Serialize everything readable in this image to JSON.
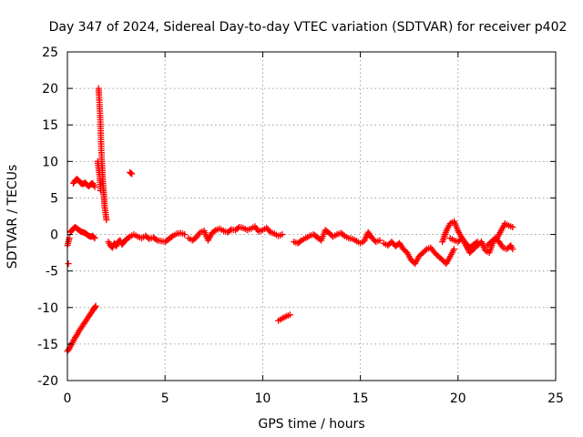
{
  "chart_data": {
    "type": "scatter",
    "title": "Day 347 of 2024, Sidereal Day-to-day VTEC variation (SDTVAR) for receiver p402",
    "xlabel": "GPS time / hours",
    "ylabel": "SDTVAR / TECUs",
    "xlim": [
      0,
      25
    ],
    "ylim": [
      -20,
      25
    ],
    "xticks": [
      0,
      5,
      10,
      15,
      20,
      25
    ],
    "yticks": [
      -20,
      -15,
      -10,
      -5,
      0,
      5,
      10,
      15,
      20,
      25
    ],
    "grid": true,
    "marker": "+",
    "color": "#ff0000",
    "series": [
      {
        "name": "SDTVAR",
        "segments": [
          {
            "x": [
              0.0,
              0.1,
              0.2,
              0.3,
              0.4,
              0.5,
              0.6,
              0.7,
              0.8,
              0.9,
              1.0,
              1.1,
              1.2,
              1.3,
              1.35,
              1.4,
              1.45
            ],
            "y": [
              -16.0,
              -15.6,
              -15.1,
              -14.6,
              -14.1,
              -13.7,
              -13.2,
              -12.8,
              -12.4,
              -12.0,
              -11.6,
              -11.2,
              -10.8,
              -10.4,
              -10.2,
              -10.0,
              -9.8
            ]
          },
          {
            "x": [
              0.0,
              0.05,
              0.1
            ],
            "y": [
              -1.5,
              -1.0,
              -0.5
            ]
          },
          {
            "x": [
              0.05
            ],
            "y": [
              -4.0
            ]
          },
          {
            "x": [
              0.15,
              0.2,
              0.3,
              0.4,
              0.5,
              0.6,
              0.7,
              0.8,
              0.9,
              1.0,
              1.1,
              1.2,
              1.3,
              1.4
            ],
            "y": [
              0.3,
              0.5,
              0.8,
              1.0,
              0.8,
              0.6,
              0.4,
              0.3,
              0.2,
              0.0,
              -0.2,
              -0.3,
              -0.2,
              -0.5
            ]
          },
          {
            "x": [
              0.3,
              0.4,
              0.5,
              0.6,
              0.7,
              0.8,
              0.9,
              1.0,
              1.1,
              1.2,
              1.3,
              1.4
            ],
            "y": [
              7.0,
              7.4,
              7.6,
              7.3,
              7.0,
              6.9,
              7.1,
              6.8,
              6.6,
              6.9,
              7.0,
              6.5
            ]
          },
          {
            "x": [
              1.6,
              1.62,
              1.65,
              1.68,
              1.7,
              1.72,
              1.74,
              1.76,
              1.78,
              1.8,
              1.82,
              1.85,
              1.88,
              1.9,
              1.95,
              2.0
            ],
            "y": [
              20.0,
              19.0,
              17.5,
              16.0,
              14.5,
              13.0,
              11.5,
              10.0,
              9.0,
              8.0,
              7.0,
              6.0,
              5.0,
              4.0,
              3.0,
              2.0
            ]
          },
          {
            "x": [
              1.55,
              1.6,
              1.65,
              1.7
            ],
            "y": [
              10.0,
              9.0,
              8.0,
              6.0
            ]
          },
          {
            "x": [
              3.2,
              3.3
            ],
            "y": [
              8.5,
              8.3
            ]
          },
          {
            "x": [
              2.1,
              2.2,
              2.3,
              2.4,
              2.5,
              2.6,
              2.7,
              2.8,
              2.9,
              3.0,
              3.2,
              3.4,
              3.6,
              3.8,
              4.0,
              4.2,
              4.4,
              4.6,
              4.8,
              5.0,
              5.2,
              5.4,
              5.6,
              5.8,
              6.0
            ],
            "y": [
              -1.0,
              -1.5,
              -1.8,
              -1.2,
              -1.6,
              -1.0,
              -0.8,
              -1.4,
              -1.0,
              -0.7,
              -0.3,
              0.0,
              -0.3,
              -0.5,
              -0.2,
              -0.6,
              -0.4,
              -0.8,
              -0.9,
              -1.0,
              -0.6,
              -0.2,
              0.1,
              0.2,
              0.0
            ]
          },
          {
            "x": [
              6.2,
              6.4,
              6.6,
              6.8,
              7.0,
              7.2,
              7.4,
              7.6,
              7.8,
              8.0,
              8.2,
              8.4,
              8.6,
              8.8,
              9.0,
              9.2,
              9.4,
              9.6,
              9.8,
              10.0,
              10.2,
              10.4,
              10.6,
              10.8,
              11.0
            ],
            "y": [
              -0.5,
              -0.8,
              -0.4,
              0.3,
              0.5,
              -0.8,
              0.2,
              0.6,
              0.8,
              0.5,
              0.3,
              0.7,
              0.6,
              1.0,
              0.9,
              0.6,
              0.8,
              1.1,
              0.4,
              0.6,
              0.9,
              0.3,
              0.1,
              -0.2,
              0.0
            ]
          },
          {
            "x": [
              10.8,
              11.0,
              11.2,
              11.4
            ],
            "y": [
              -11.8,
              -11.5,
              -11.2,
              -11.0
            ]
          },
          {
            "x": [
              11.6,
              11.8,
              12.0,
              12.2,
              12.4,
              12.6,
              12.8,
              13.0,
              13.2,
              13.4,
              13.6,
              13.8,
              14.0,
              14.2,
              14.4,
              14.6,
              14.8,
              15.0,
              15.2,
              15.4,
              15.6,
              15.8,
              16.0
            ],
            "y": [
              -1.0,
              -1.2,
              -0.8,
              -0.5,
              -0.2,
              0.0,
              -0.4,
              -0.8,
              0.6,
              0.2,
              -0.3,
              0.0,
              0.2,
              -0.2,
              -0.5,
              -0.6,
              -0.9,
              -1.2,
              -0.9,
              0.3,
              -0.5,
              -1.0,
              -0.8
            ]
          },
          {
            "x": [
              16.2,
              16.4,
              16.6,
              16.8,
              17.0,
              17.2,
              17.4,
              17.6,
              17.8,
              18.0,
              18.2,
              18.4,
              18.6,
              18.8,
              19.0,
              19.2,
              19.4,
              19.6,
              19.8
            ],
            "y": [
              -1.2,
              -1.5,
              -1.0,
              -1.6,
              -1.2,
              -2.0,
              -2.5,
              -3.5,
              -4.0,
              -3.0,
              -2.5,
              -2.0,
              -1.8,
              -2.5,
              -3.0,
              -3.5,
              -4.0,
              -3.0,
              -2.0
            ]
          },
          {
            "x": [
              19.2,
              19.4,
              19.6,
              19.8,
              20.0,
              20.2,
              20.4,
              20.6,
              20.8,
              21.0,
              21.2,
              21.4,
              21.6,
              21.8,
              22.0,
              22.2,
              22.4,
              22.6,
              22.8
            ],
            "y": [
              -1.0,
              0.5,
              1.5,
              1.8,
              0.5,
              -0.5,
              -1.5,
              -2.5,
              -2.0,
              -1.5,
              -1.0,
              -2.2,
              -2.5,
              -1.0,
              -0.5,
              0.5,
              1.5,
              1.2,
              1.0
            ]
          },
          {
            "x": [
              19.6,
              19.8,
              20.0,
              20.2,
              20.4,
              20.6,
              20.8,
              21.0
            ],
            "y": [
              -0.5,
              -0.8,
              -1.0,
              -0.5,
              -1.2,
              -1.8,
              -1.4,
              -1.0
            ]
          },
          {
            "x": [
              21.5,
              21.7,
              21.9,
              22.1,
              22.3,
              22.5,
              22.7,
              22.8
            ],
            "y": [
              -1.5,
              -1.0,
              -0.5,
              -1.0,
              -1.8,
              -2.0,
              -1.5,
              -2.0
            ]
          }
        ]
      }
    ]
  }
}
